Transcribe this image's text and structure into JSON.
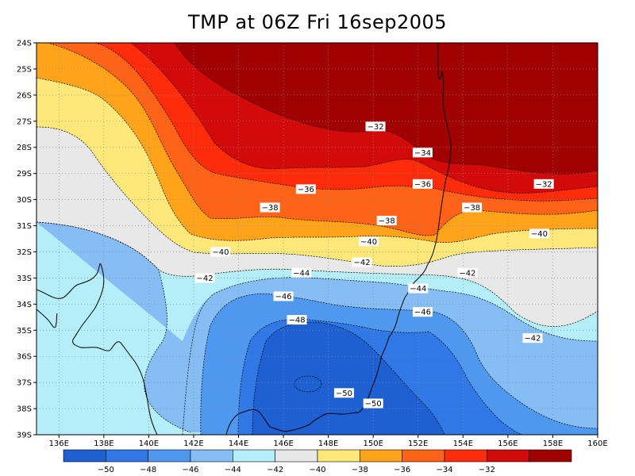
{
  "title": "TMP at 06Z Fri 16sep2005",
  "map": {
    "lat_labels": [
      "24S",
      "25S",
      "26S",
      "27S",
      "28S",
      "29S",
      "30S",
      "31S",
      "32S",
      "33S",
      "34S",
      "35S",
      "36S",
      "37S",
      "38S",
      "39S"
    ],
    "lon_labels": [
      "136E",
      "138E",
      "140E",
      "142E",
      "144E",
      "146E",
      "148E",
      "150E",
      "152E",
      "154E",
      "156E",
      "158E",
      "160E"
    ],
    "contour_labels": [
      {
        "text": "-32",
        "lon": 150.1,
        "lat": -27.2
      },
      {
        "text": "-34",
        "lon": 152.2,
        "lat": -28.2
      },
      {
        "text": "-36",
        "lon": 152.2,
        "lat": -29.4
      },
      {
        "text": "-32",
        "lon": 157.6,
        "lat": -29.4
      },
      {
        "text": "-36",
        "lon": 147.0,
        "lat": -29.6
      },
      {
        "text": "-38",
        "lon": 145.4,
        "lat": -30.3
      },
      {
        "text": "-38",
        "lon": 154.4,
        "lat": -30.3
      },
      {
        "text": "-38",
        "lon": 150.6,
        "lat": -30.8
      },
      {
        "text": "-40",
        "lon": 149.8,
        "lat": -31.6
      },
      {
        "text": "-40",
        "lon": 157.4,
        "lat": -31.3
      },
      {
        "text": "-40",
        "lon": 143.2,
        "lat": -32.0
      },
      {
        "text": "-42",
        "lon": 149.5,
        "lat": -32.4
      },
      {
        "text": "-42",
        "lon": 142.5,
        "lat": -33.0
      },
      {
        "text": "-42",
        "lon": 154.2,
        "lat": -32.8
      },
      {
        "text": "-44",
        "lon": 146.8,
        "lat": -32.8
      },
      {
        "text": "-44",
        "lon": 152.0,
        "lat": -33.4
      },
      {
        "text": "-46",
        "lon": 146.0,
        "lat": -33.7
      },
      {
        "text": "-46",
        "lon": 152.2,
        "lat": -34.3
      },
      {
        "text": "-48",
        "lon": 146.6,
        "lat": -34.6
      },
      {
        "text": "-42",
        "lon": 157.1,
        "lat": -35.3
      },
      {
        "text": "-50",
        "lon": 148.7,
        "lat": -37.4
      },
      {
        "text": "-50",
        "lon": 150.0,
        "lat": -37.8
      }
    ]
  },
  "colorbar": {
    "colors": [
      "#1e5fd2",
      "#2f78e6",
      "#4f98f0",
      "#86bdf5",
      "#b4eef8",
      "#e8e8e8",
      "#ffe87a",
      "#ffa31a",
      "#ff6317",
      "#ff2c0c",
      "#d20a0a",
      "#a00000"
    ],
    "labels": [
      "-50",
      "-48",
      "-46",
      "-44",
      "-42",
      "-40",
      "-38",
      "-36",
      "-34",
      "-32"
    ]
  }
}
